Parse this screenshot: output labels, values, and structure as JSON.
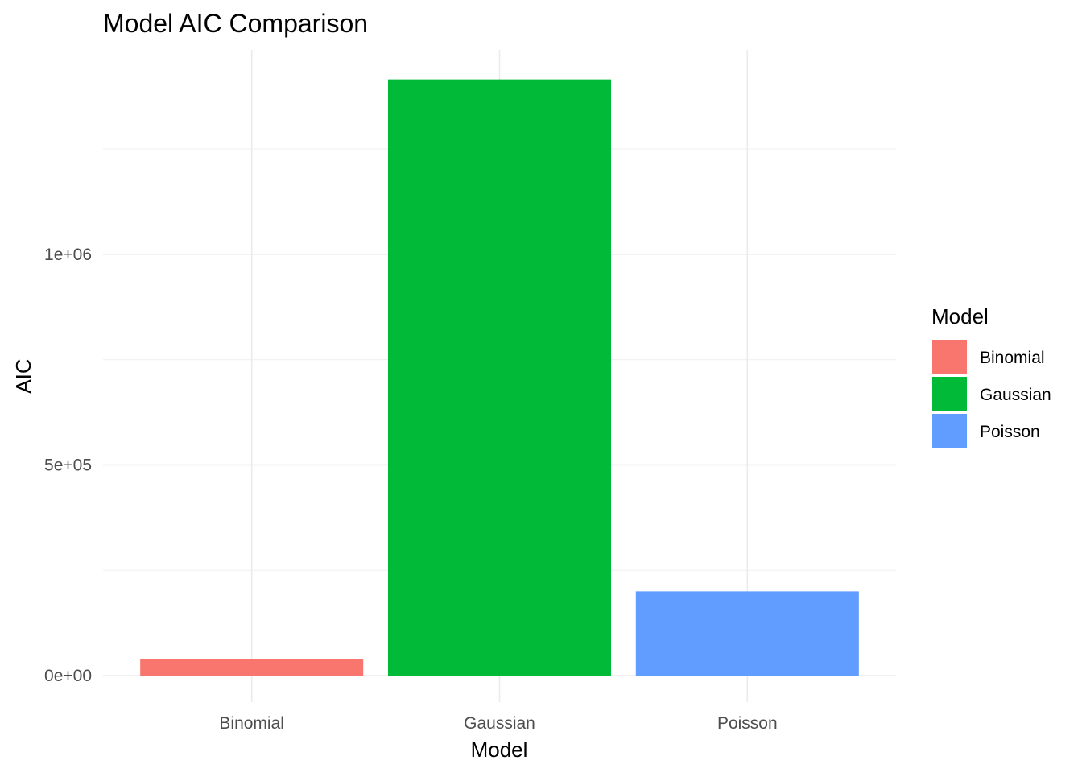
{
  "chart_data": {
    "type": "bar",
    "title": "Model AIC Comparison",
    "xlabel": "Model",
    "ylabel": "AIC",
    "categories": [
      "Binomial",
      "Gaussian",
      "Poisson"
    ],
    "values": [
      40000,
      1415000,
      200000
    ],
    "colors": [
      "#F8766D",
      "#00BA38",
      "#619CFF"
    ],
    "ylim": [
      -63000,
      1485000
    ],
    "yticks": [
      0,
      500000,
      1000000
    ],
    "ytick_labels": [
      "0e+00",
      "5e+05",
      "1e+06"
    ],
    "grid": true,
    "legend": {
      "title": "Model",
      "position": "right",
      "entries": [
        "Binomial",
        "Gaussian",
        "Poisson"
      ]
    }
  }
}
